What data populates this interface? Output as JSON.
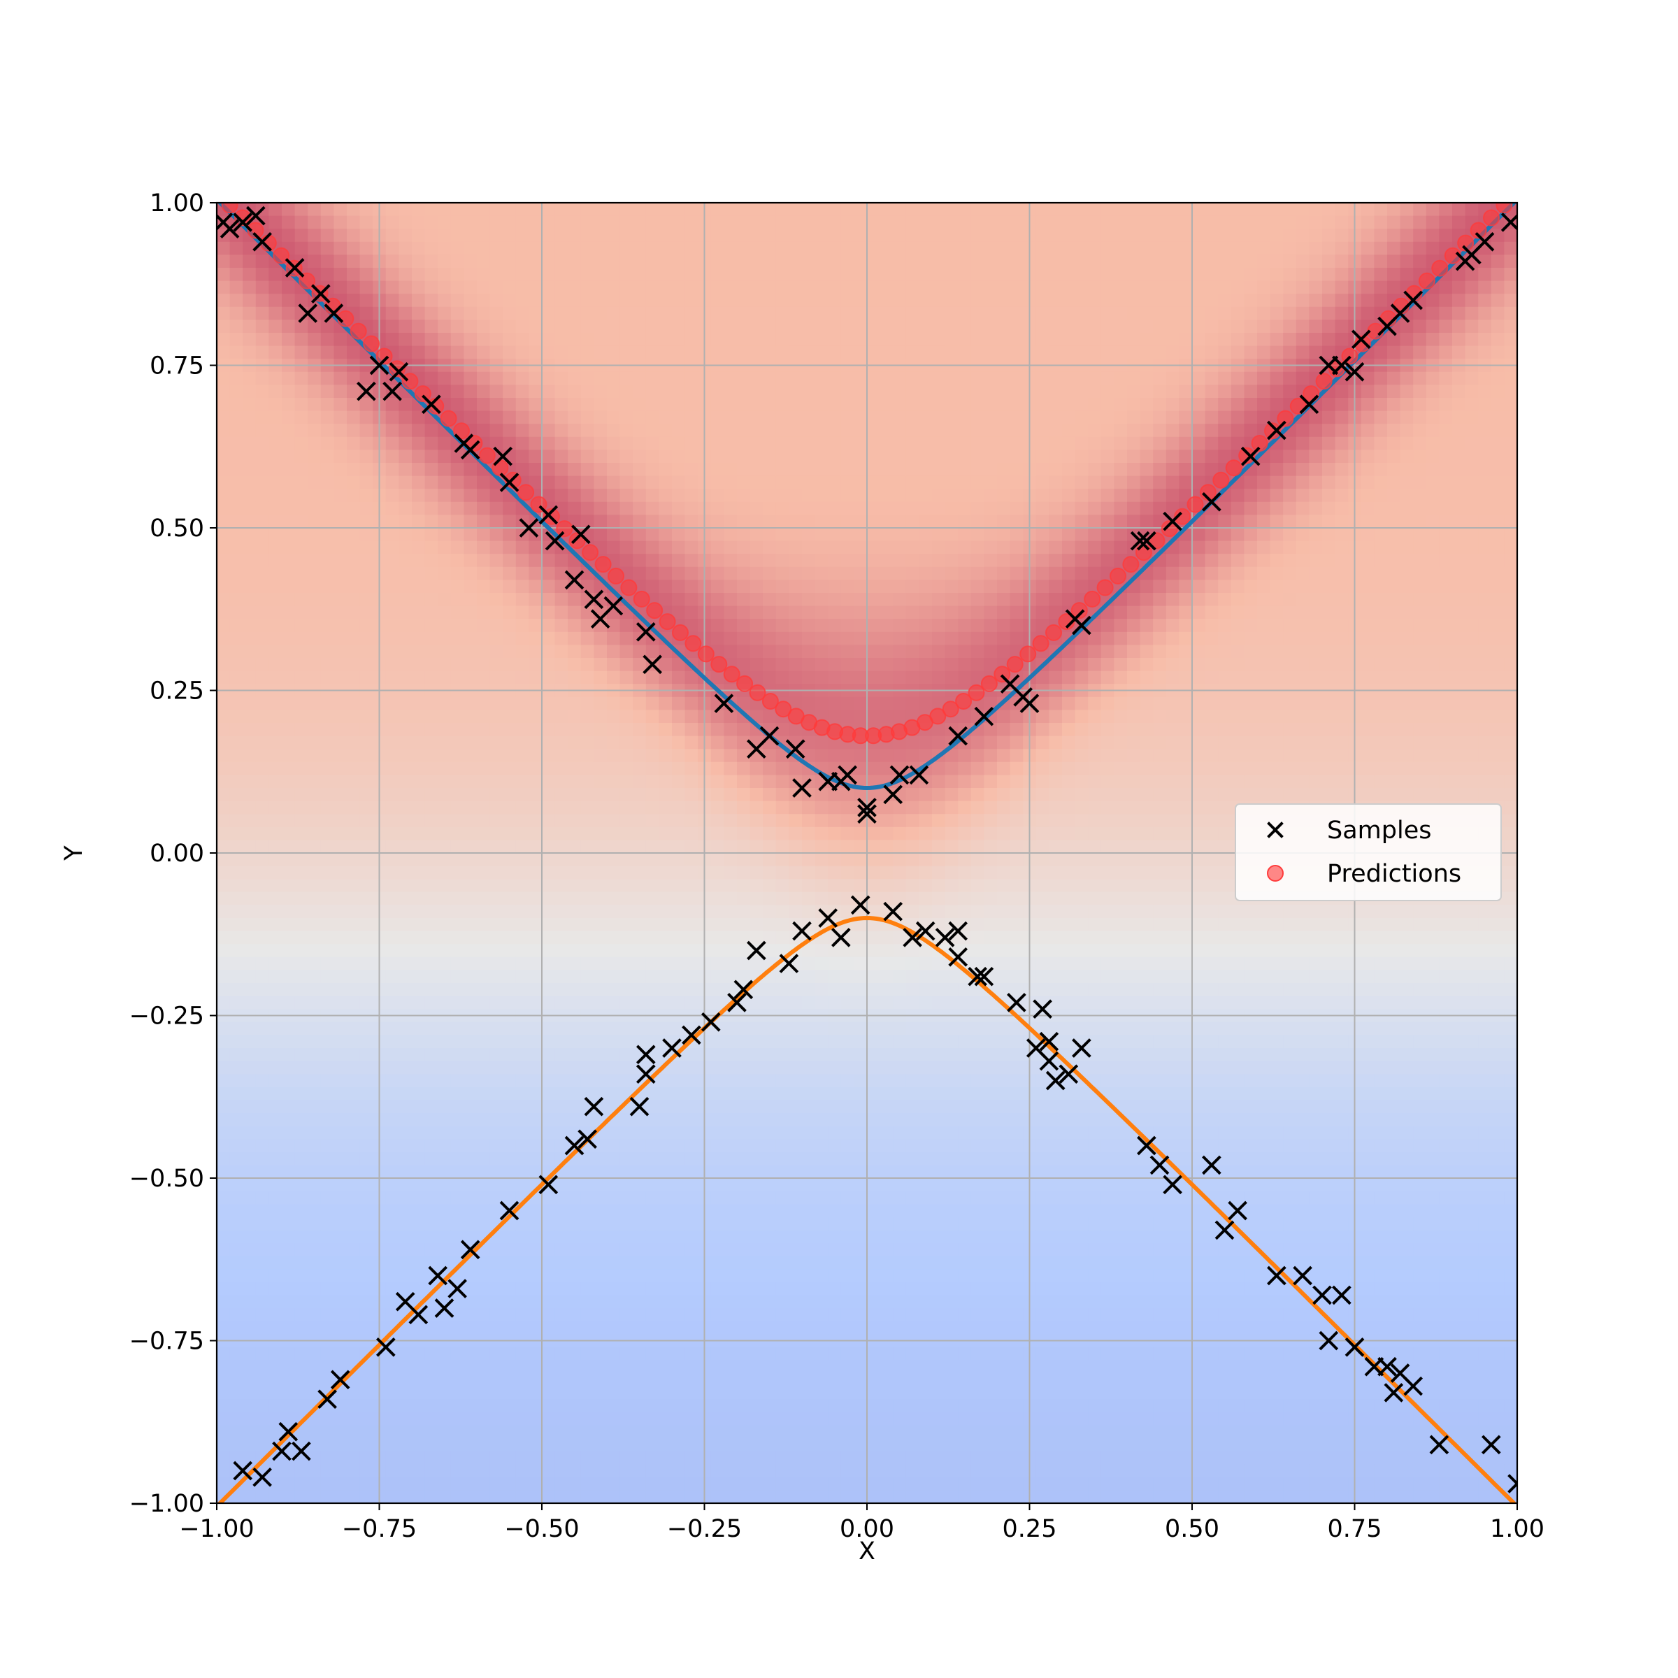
{
  "chart_data": {
    "type": "scatter",
    "title": "",
    "xlabel": "X",
    "ylabel": "Y",
    "xlim": [
      -1.0,
      1.0
    ],
    "ylim": [
      -1.0,
      1.0
    ],
    "grid": true,
    "legend_location": "center-right",
    "xticks": [
      "−1.00",
      "−0.75",
      "−0.50",
      "−0.25",
      "0.00",
      "0.25",
      "0.50",
      "0.75",
      "1.00"
    ],
    "yticks": [
      "−1.00",
      "−0.75",
      "−0.50",
      "−0.25",
      "0.00",
      "0.25",
      "0.50",
      "0.75",
      "1.00"
    ],
    "background_heatmap": {
      "colormap": "coolwarm",
      "description_values": "density high along upper curve, red in upper half, blue in lower half"
    },
    "series": [
      {
        "name": "Samples",
        "kind": "scatter",
        "marker": "x",
        "color": "#000000",
        "points": [
          [
            -0.99,
            0.97
          ],
          [
            -0.98,
            0.96
          ],
          [
            -0.96,
            0.97
          ],
          [
            -0.94,
            0.98
          ],
          [
            -0.93,
            0.94
          ],
          [
            -0.88,
            0.9
          ],
          [
            -0.86,
            0.83
          ],
          [
            -0.84,
            0.86
          ],
          [
            -0.82,
            0.83
          ],
          [
            -0.77,
            0.71
          ],
          [
            -0.75,
            0.75
          ],
          [
            -0.73,
            0.71
          ],
          [
            -0.72,
            0.74
          ],
          [
            -0.67,
            0.69
          ],
          [
            -0.62,
            0.63
          ],
          [
            -0.61,
            0.62
          ],
          [
            -0.56,
            0.61
          ],
          [
            -0.55,
            0.57
          ],
          [
            -0.52,
            0.5
          ],
          [
            -0.49,
            0.52
          ],
          [
            -0.48,
            0.48
          ],
          [
            -0.45,
            0.42
          ],
          [
            -0.44,
            0.49
          ],
          [
            -0.42,
            0.39
          ],
          [
            -0.41,
            0.36
          ],
          [
            -0.39,
            0.38
          ],
          [
            -0.34,
            0.34
          ],
          [
            -0.33,
            0.29
          ],
          [
            -0.22,
            0.23
          ],
          [
            -0.17,
            0.16
          ],
          [
            -0.15,
            0.18
          ],
          [
            -0.11,
            0.16
          ],
          [
            -0.1,
            0.1
          ],
          [
            -0.06,
            0.11
          ],
          [
            -0.04,
            0.11
          ],
          [
            -0.03,
            0.12
          ],
          [
            0.0,
            0.07
          ],
          [
            0.0,
            0.06
          ],
          [
            0.04,
            0.09
          ],
          [
            0.05,
            0.12
          ],
          [
            0.08,
            0.12
          ],
          [
            0.14,
            0.18
          ],
          [
            0.18,
            0.21
          ],
          [
            0.22,
            0.26
          ],
          [
            0.24,
            0.24
          ],
          [
            0.25,
            0.23
          ],
          [
            0.32,
            0.36
          ],
          [
            0.33,
            0.35
          ],
          [
            0.42,
            0.48
          ],
          [
            0.43,
            0.48
          ],
          [
            0.47,
            0.51
          ],
          [
            0.53,
            0.54
          ],
          [
            0.59,
            0.61
          ],
          [
            0.63,
            0.65
          ],
          [
            0.68,
            0.69
          ],
          [
            0.71,
            0.75
          ],
          [
            0.73,
            0.75
          ],
          [
            0.75,
            0.74
          ],
          [
            0.76,
            0.79
          ],
          [
            0.8,
            0.81
          ],
          [
            0.82,
            0.83
          ],
          [
            0.84,
            0.85
          ],
          [
            0.92,
            0.91
          ],
          [
            0.93,
            0.92
          ],
          [
            0.95,
            0.94
          ],
          [
            0.99,
            0.97
          ],
          [
            -0.96,
            -0.95
          ],
          [
            -0.93,
            -0.96
          ],
          [
            -0.9,
            -0.92
          ],
          [
            -0.89,
            -0.89
          ],
          [
            -0.87,
            -0.92
          ],
          [
            -0.83,
            -0.84
          ],
          [
            -0.81,
            -0.81
          ],
          [
            -0.74,
            -0.76
          ],
          [
            -0.71,
            -0.69
          ],
          [
            -0.69,
            -0.71
          ],
          [
            -0.66,
            -0.65
          ],
          [
            -0.65,
            -0.7
          ],
          [
            -0.63,
            -0.67
          ],
          [
            -0.61,
            -0.61
          ],
          [
            -0.55,
            -0.55
          ],
          [
            -0.49,
            -0.51
          ],
          [
            -0.45,
            -0.45
          ],
          [
            -0.43,
            -0.44
          ],
          [
            -0.42,
            -0.39
          ],
          [
            -0.35,
            -0.39
          ],
          [
            -0.34,
            -0.34
          ],
          [
            -0.34,
            -0.31
          ],
          [
            -0.3,
            -0.3
          ],
          [
            -0.27,
            -0.28
          ],
          [
            -0.24,
            -0.26
          ],
          [
            -0.2,
            -0.23
          ],
          [
            -0.19,
            -0.21
          ],
          [
            -0.17,
            -0.15
          ],
          [
            -0.12,
            -0.17
          ],
          [
            -0.1,
            -0.12
          ],
          [
            -0.06,
            -0.1
          ],
          [
            -0.04,
            -0.13
          ],
          [
            -0.01,
            -0.08
          ],
          [
            0.04,
            -0.09
          ],
          [
            0.07,
            -0.13
          ],
          [
            0.09,
            -0.12
          ],
          [
            0.12,
            -0.13
          ],
          [
            0.14,
            -0.12
          ],
          [
            0.14,
            -0.16
          ],
          [
            0.17,
            -0.19
          ],
          [
            0.18,
            -0.19
          ],
          [
            0.23,
            -0.23
          ],
          [
            0.26,
            -0.3
          ],
          [
            0.27,
            -0.24
          ],
          [
            0.28,
            -0.29
          ],
          [
            0.28,
            -0.32
          ],
          [
            0.29,
            -0.35
          ],
          [
            0.31,
            -0.34
          ],
          [
            0.33,
            -0.3
          ],
          [
            0.43,
            -0.45
          ],
          [
            0.45,
            -0.48
          ],
          [
            0.47,
            -0.51
          ],
          [
            0.53,
            -0.48
          ],
          [
            0.55,
            -0.58
          ],
          [
            0.57,
            -0.55
          ],
          [
            0.63,
            -0.65
          ],
          [
            0.67,
            -0.65
          ],
          [
            0.7,
            -0.68
          ],
          [
            0.71,
            -0.75
          ],
          [
            0.73,
            -0.68
          ],
          [
            0.75,
            -0.76
          ],
          [
            0.78,
            -0.79
          ],
          [
            0.8,
            -0.79
          ],
          [
            0.81,
            -0.83
          ],
          [
            0.82,
            -0.8
          ],
          [
            0.84,
            -0.82
          ],
          [
            0.88,
            -0.91
          ],
          [
            0.96,
            -0.91
          ],
          [
            1.0,
            -0.97
          ]
        ]
      },
      {
        "name": "Predictions",
        "kind": "scatter",
        "marker": "circle",
        "color": "#ff3b3b",
        "alpha": 0.6,
        "function": "sqrt(x^2 + 0.0324)",
        "x_range": [
          -0.98,
          0.98
        ],
        "n_points": 100
      },
      {
        "name": "",
        "kind": "line",
        "color": "#1f77b4",
        "function": "sqrt(x^2 + 0.01)",
        "x_range": [
          -1.0,
          1.0
        ]
      },
      {
        "name": "",
        "kind": "line",
        "color": "#ff7f0e",
        "function": "-sqrt(x^2 + 0.01)",
        "x_range": [
          -1.0,
          1.0
        ]
      }
    ]
  },
  "legend": {
    "items": [
      {
        "label": "Samples",
        "marker": "x",
        "color": "#000000"
      },
      {
        "label": "Predictions",
        "marker": "circle",
        "color": "#ff3b3b"
      }
    ]
  }
}
